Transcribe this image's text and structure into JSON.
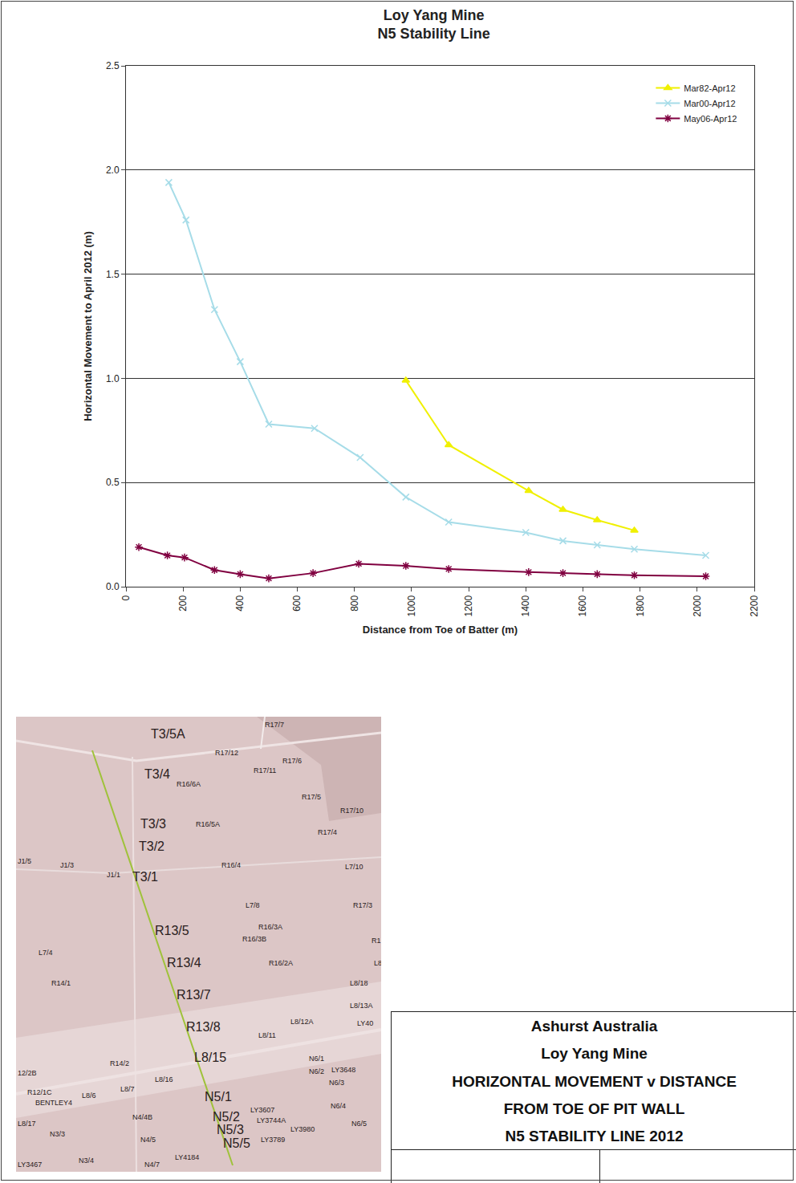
{
  "chart_data": {
    "type": "line",
    "title": "Loy Yang Mine\nN5 Stability Line",
    "x_label": "Distance from Toe of Batter (m)",
    "y_label": "Horizontal Movement to April 2012 (m)",
    "xlim": [
      0,
      2200
    ],
    "xticks": [
      0,
      200,
      400,
      600,
      800,
      1000,
      1200,
      1400,
      1600,
      1800,
      2000,
      2200
    ],
    "ylim": [
      0,
      2.5
    ],
    "yticks": [
      {
        "value": 0,
        "label": "0.0"
      },
      0.5,
      {
        "value": 1,
        "label": "1.0"
      },
      1.5,
      {
        "value": 2,
        "label": "2.0"
      },
      2.5
    ],
    "grid": "y",
    "legend": "top right",
    "series": [
      {
        "name": "Mar82-Apr12",
        "color": "#f0f000",
        "marker": "triangle-up",
        "x": [
          980,
          1130,
          1410,
          1530,
          1650,
          1780
        ],
        "values": [
          0.99,
          0.68,
          0.46,
          0.37,
          0.32,
          0.27
        ]
      },
      {
        "name": "Mar00-Apr12",
        "color": "#a6dce8",
        "marker": "x",
        "x": [
          150,
          210,
          310,
          400,
          500,
          660,
          820,
          980,
          1130,
          1400,
          1530,
          1650,
          1780,
          2030
        ],
        "values": [
          1.94,
          1.76,
          1.33,
          1.08,
          0.78,
          0.76,
          0.62,
          0.43,
          0.31,
          0.26,
          0.22,
          0.2,
          0.18,
          0.15
        ]
      },
      {
        "name": "May06-Apr12",
        "color": "#800040",
        "marker": "asterisk",
        "x": [
          45,
          145,
          205,
          310,
          400,
          500,
          655,
          815,
          980,
          1130,
          1410,
          1530,
          1650,
          1780,
          2030
        ],
        "values": [
          0.19,
          0.15,
          0.14,
          0.08,
          0.06,
          0.04,
          0.065,
          0.11,
          0.1,
          0.085,
          0.07,
          0.065,
          0.06,
          0.055,
          0.05
        ]
      }
    ]
  },
  "map": {
    "major_labels": [
      "T3/5A",
      "T3/4",
      "T3/3",
      "T3/2",
      "T3/1",
      "R13/5",
      "R13/4",
      "R13/7",
      "R13/8",
      "L8/15",
      "N5/1",
      "N5/2",
      "N5/3",
      "N5/5"
    ],
    "labels": [
      "R17/7",
      "R17/12",
      "R17/6",
      "R17/11",
      "R16/6A",
      "R17/5",
      "R17/10",
      "R16/5A",
      "R17/4",
      "J1/5",
      "J1/3",
      "J1/1",
      "R16/4",
      "L7/10",
      "L7/8",
      "R17/3",
      "R16/3A",
      "R16/3B",
      "L7/4",
      "R16/2A",
      "R1",
      "L8",
      "R14/1",
      "L8/18",
      "L8/13A",
      "L8/12A",
      "LY40",
      "L8/11",
      "R14/2",
      "L8/16",
      "N6/1",
      "N6/2",
      "LY3648",
      "N6/3",
      "12/2B",
      "R12/1C",
      "BENTLEY4",
      "L8/6",
      "L8/7",
      "N6/4",
      "N4/4B",
      "LY3607",
      "LY3744A",
      "LY3980",
      "L8/17",
      "N3/3",
      "N4/5",
      "LY3789",
      "N6/5",
      "N3/4",
      "LY4184",
      "N4/7",
      "LY3467"
    ]
  },
  "title_block": {
    "lines": [
      "Ashurst Australia",
      "Loy Yang Mine",
      "HORIZONTAL MOVEMENT v DISTANCE",
      "FROM TOE OF PIT WALL",
      "N5 STABILITY LINE 2012"
    ]
  }
}
